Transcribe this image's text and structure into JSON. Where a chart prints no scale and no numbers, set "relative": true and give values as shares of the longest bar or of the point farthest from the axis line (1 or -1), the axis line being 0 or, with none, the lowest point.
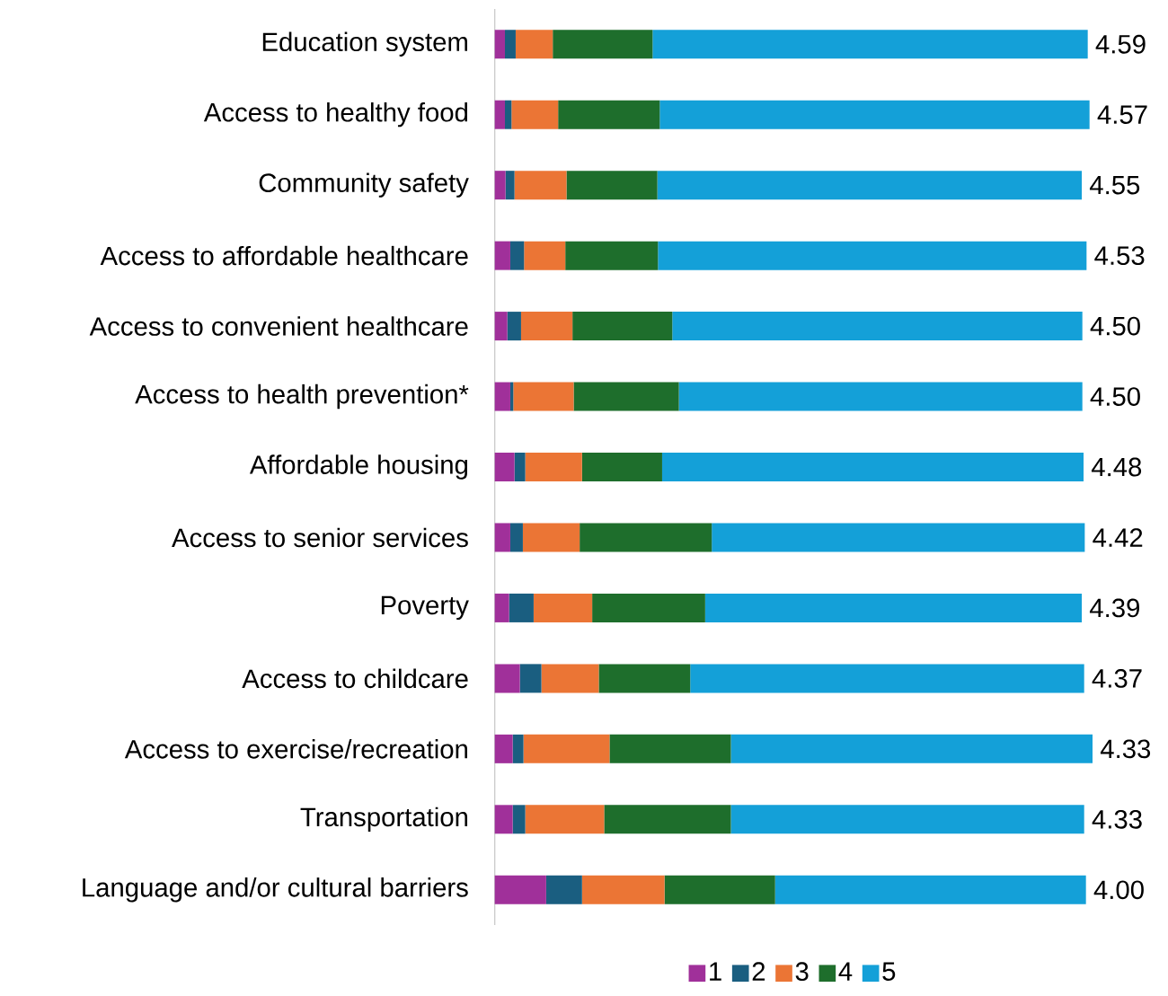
{
  "chart_data": {
    "type": "bar",
    "orientation": "horizontal",
    "stacked": true,
    "relative": true,
    "legend": "bottom",
    "categories": [
      "Education system",
      "Access to healthy food",
      "Community safety",
      "Access to affordable healthcare",
      "Access to convenient healthcare",
      "Access to health prevention*",
      "Affordable housing",
      "Access to senior services",
      "Poverty",
      "Access to childcare",
      "Access to exercise/recreation",
      "Transportation",
      "Language and/or cultural barriers"
    ],
    "series": [
      {
        "name": "1",
        "color": "#a0309a",
        "values": [
          0.017,
          0.017,
          0.018,
          0.026,
          0.021,
          0.026,
          0.033,
          0.026,
          0.024,
          0.042,
          0.03,
          0.03,
          0.086
        ]
      },
      {
        "name": "2",
        "color": "#1a5e80",
        "values": [
          0.018,
          0.011,
          0.015,
          0.023,
          0.023,
          0.005,
          0.018,
          0.021,
          0.041,
          0.036,
          0.018,
          0.021,
          0.06
        ]
      },
      {
        "name": "3",
        "color": "#eb7535",
        "values": [
          0.062,
          0.078,
          0.087,
          0.069,
          0.086,
          0.101,
          0.095,
          0.095,
          0.098,
          0.096,
          0.144,
          0.132,
          0.138
        ]
      },
      {
        "name": "4",
        "color": "#1e6e2c",
        "values": [
          0.167,
          0.17,
          0.152,
          0.155,
          0.167,
          0.176,
          0.134,
          0.221,
          0.189,
          0.153,
          0.203,
          0.212,
          0.185
        ]
      },
      {
        "name": "5",
        "color": "#14a0d8",
        "values": [
          0.728,
          0.719,
          0.71,
          0.717,
          0.686,
          0.675,
          0.705,
          0.624,
          0.63,
          0.659,
          0.605,
          0.591,
          0.52
        ]
      }
    ],
    "annotations": [
      "4.59",
      "4.57",
      "4.55",
      "4.53",
      "4.50",
      "4.50",
      "4.48",
      "4.42",
      "4.39",
      "4.37",
      "4.33",
      "4.33",
      "4.00"
    ]
  }
}
